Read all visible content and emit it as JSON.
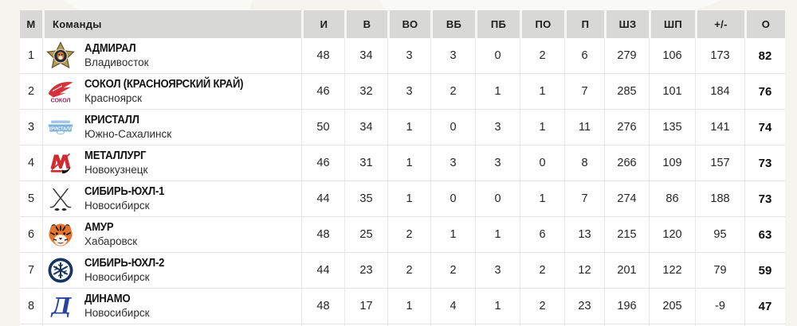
{
  "colors": {
    "page_background": "#f5f4ef",
    "header_background": "#d8d8d6",
    "row_background": "#ffffff",
    "border": "#e4e4e2",
    "text": "#1e1e1e"
  },
  "icons": {
    "admiral-logo-icon": "gold five-point star with dark tiger emblem",
    "sokol-logo-icon": "red falcon wing swoosh with wordmark",
    "kristall-logo-icon": "light-blue ice wordmark banner",
    "metallurg-logo-icon": "red letter M with black crescent",
    "sibir1-logo-icon": "crossed black hockey sticks with pucks",
    "amur-logo-icon": "orange tiger head",
    "sibir2-logo-icon": "navy circle with white snowflake",
    "dinamo-logo-icon": "blue italic letter D"
  },
  "table": {
    "header": {
      "place": "М",
      "teams": "Команды",
      "stats": [
        "И",
        "В",
        "ВО",
        "ВБ",
        "ПБ",
        "ПО",
        "П",
        "ШЗ",
        "ШП",
        "+/-",
        "О"
      ]
    },
    "rows": [
      {
        "place": "1",
        "name": "АДМИРАЛ",
        "city": "Владивосток",
        "logo": "admiral-logo-icon",
        "stats": [
          "48",
          "34",
          "3",
          "3",
          "0",
          "2",
          "6",
          "279",
          "106",
          "173",
          "82"
        ]
      },
      {
        "place": "2",
        "name": "СОКОЛ (КРАСНОЯРСКИЙ КРАЙ)",
        "city": "Красноярск",
        "logo": "sokol-logo-icon",
        "stats": [
          "46",
          "32",
          "3",
          "2",
          "1",
          "1",
          "7",
          "285",
          "101",
          "184",
          "76"
        ]
      },
      {
        "place": "3",
        "name": "КРИСТАЛЛ",
        "city": "Южно-Сахалинск",
        "logo": "kristall-logo-icon",
        "stats": [
          "50",
          "34",
          "1",
          "0",
          "3",
          "1",
          "11",
          "276",
          "135",
          "141",
          "74"
        ]
      },
      {
        "place": "4",
        "name": "МЕТАЛЛУРГ",
        "city": "Новокузнецк",
        "logo": "metallurg-logo-icon",
        "stats": [
          "46",
          "31",
          "1",
          "3",
          "3",
          "0",
          "8",
          "266",
          "109",
          "157",
          "73"
        ]
      },
      {
        "place": "5",
        "name": "СИБИРЬ-ЮХЛ-1",
        "city": "Новосибирск",
        "logo": "sibir1-logo-icon",
        "stats": [
          "44",
          "35",
          "1",
          "0",
          "0",
          "1",
          "7",
          "274",
          "86",
          "188",
          "73"
        ]
      },
      {
        "place": "6",
        "name": "АМУР",
        "city": "Хабаровск",
        "logo": "amur-logo-icon",
        "stats": [
          "48",
          "25",
          "2",
          "1",
          "1",
          "6",
          "13",
          "215",
          "120",
          "95",
          "63"
        ]
      },
      {
        "place": "7",
        "name": "СИБИРЬ-ЮХЛ-2",
        "city": "Новосибирск",
        "logo": "sibir2-logo-icon",
        "stats": [
          "44",
          "23",
          "2",
          "2",
          "3",
          "2",
          "12",
          "201",
          "122",
          "79",
          "59"
        ]
      },
      {
        "place": "8",
        "name": "ДИНАМО",
        "city": "Новосибирск",
        "logo": "dinamo-logo-icon",
        "stats": [
          "48",
          "17",
          "1",
          "4",
          "1",
          "2",
          "23",
          "196",
          "205",
          "-9",
          "47"
        ]
      }
    ]
  }
}
